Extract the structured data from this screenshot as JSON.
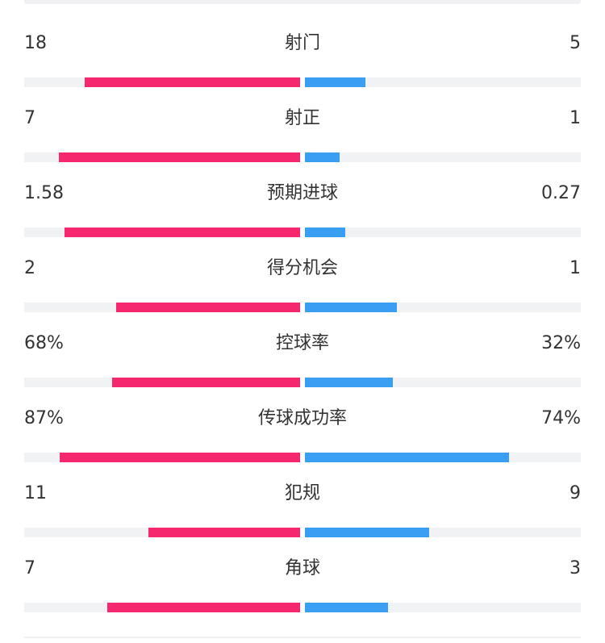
{
  "colors": {
    "home_bar": "#f5276e",
    "away_bar": "#3a9ff2",
    "track": "#f1f2f4",
    "text": "#333333"
  },
  "stats": [
    {
      "label": "射门",
      "home": "18",
      "away": "5",
      "home_fill": 0.78,
      "away_fill": 0.22
    },
    {
      "label": "射正",
      "home": "7",
      "away": "1",
      "home_fill": 0.875,
      "away_fill": 0.125
    },
    {
      "label": "预期进球",
      "home": "1.58",
      "away": "0.27",
      "home_fill": 0.854,
      "away_fill": 0.146
    },
    {
      "label": "得分机会",
      "home": "2",
      "away": "1",
      "home_fill": 0.667,
      "away_fill": 0.333
    },
    {
      "label": "控球率",
      "home": "68%",
      "away": "32%",
      "home_fill": 0.68,
      "away_fill": 0.32
    },
    {
      "label": "传球成功率",
      "home": "87%",
      "away": "74%",
      "home_fill": 0.87,
      "away_fill": 0.74
    },
    {
      "label": "犯规",
      "home": "11",
      "away": "9",
      "home_fill": 0.55,
      "away_fill": 0.45
    },
    {
      "label": "角球",
      "home": "7",
      "away": "3",
      "home_fill": 0.7,
      "away_fill": 0.3
    }
  ]
}
